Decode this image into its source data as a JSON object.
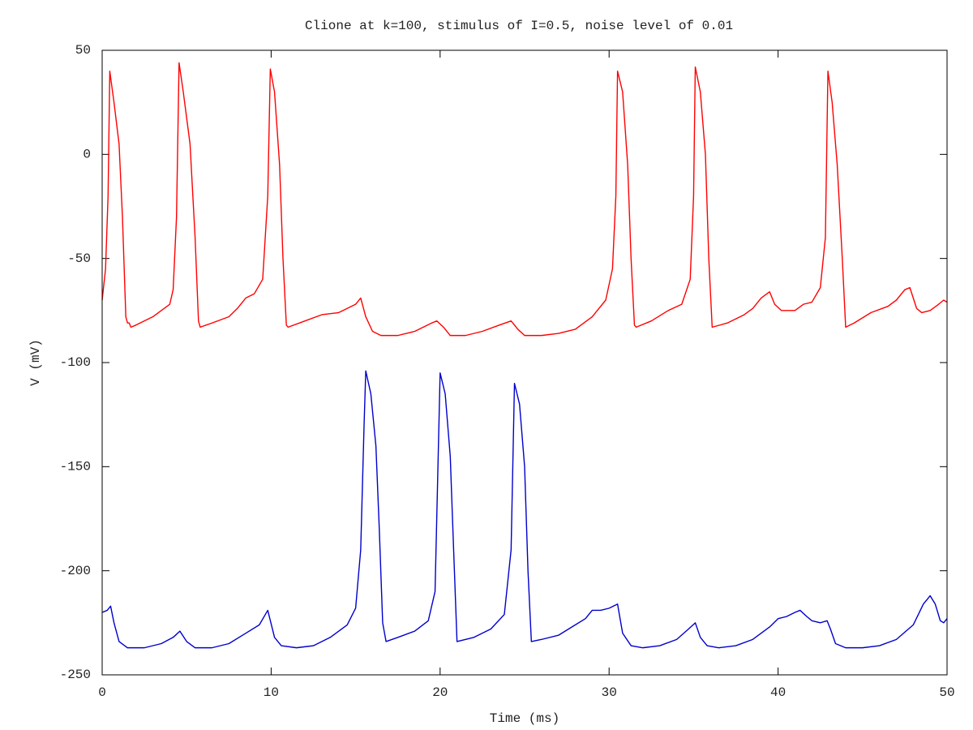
{
  "chart_data": {
    "type": "line",
    "title": "Clione at k=100, stimulus of I=0.5, noise level of 0.01",
    "x_label": "Time (ms)",
    "y_label": "V (mV)",
    "xlim": [
      0,
      50
    ],
    "ylim": [
      -250,
      50
    ],
    "xticks": [
      0,
      10,
      20,
      30,
      40,
      50
    ],
    "yticks": [
      -250,
      -200,
      -150,
      -100,
      -50,
      0,
      50
    ],
    "grid": false,
    "series": [
      {
        "color": "#ff0000",
        "x": [
          0,
          0.2,
          0.35,
          0.45,
          0.7,
          1.0,
          1.2,
          1.4,
          1.5,
          1.6,
          1.7,
          2,
          3,
          4,
          4.2,
          4.4,
          4.55,
          4.8,
          5.2,
          5.5,
          5.7,
          5.8,
          6.5,
          7.5,
          8,
          8.5,
          9,
          9.5,
          9.8,
          9.95,
          10.2,
          10.5,
          10.7,
          10.9,
          11,
          12,
          13,
          14,
          14.5,
          15,
          15.3,
          15.6,
          16,
          16.5,
          17.5,
          18.5,
          19.5,
          19.8,
          20.2,
          20.6,
          21.5,
          22.5,
          23.5,
          24.2,
          24.6,
          25,
          26,
          27,
          28,
          29,
          29.8,
          30.2,
          30.4,
          30.5,
          30.8,
          31.1,
          31.3,
          31.5,
          31.6,
          32.5,
          33.5,
          34.3,
          34.8,
          35.0,
          35.1,
          35.4,
          35.7,
          35.9,
          36.1,
          37,
          38,
          38.5,
          39,
          39.5,
          39.8,
          40.2,
          41,
          41.5,
          42,
          42.5,
          42.8,
          42.95,
          43.2,
          43.5,
          43.8,
          44,
          44.5,
          45.5,
          46.5,
          47,
          47.5,
          47.8,
          48.2,
          48.5,
          49,
          49.5,
          49.8,
          50
        ],
        "values": [
          -70,
          -55,
          -20,
          40,
          25,
          5,
          -30,
          -78,
          -81,
          -81,
          -83,
          -82,
          -78,
          -72,
          -65,
          -30,
          44,
          30,
          5,
          -40,
          -80,
          -83,
          -81,
          -78,
          -74,
          -69,
          -67,
          -60,
          -20,
          41,
          30,
          -5,
          -50,
          -82,
          -83,
          -80,
          -77,
          -76,
          -74,
          -72,
          -69,
          -78,
          -85,
          -87,
          -87,
          -85,
          -81,
          -80,
          -83,
          -87,
          -87,
          -85,
          -82,
          -80,
          -84,
          -87,
          -87,
          -86,
          -84,
          -78,
          -70,
          -55,
          -20,
          40,
          30,
          -5,
          -50,
          -82,
          -83,
          -80,
          -75,
          -72,
          -60,
          -20,
          42,
          30,
          0,
          -50,
          -83,
          -81,
          -77,
          -74,
          -69,
          -66,
          -72,
          -75,
          -75,
          -72,
          -71,
          -64,
          -40,
          40,
          25,
          -5,
          -50,
          -83,
          -81,
          -76,
          -73,
          -70,
          -65,
          -64,
          -74,
          -76,
          -75,
          -72,
          -70,
          -71
        ]
      },
      {
        "color": "#0000cc",
        "x": [
          0,
          0.3,
          0.5,
          0.7,
          1,
          1.5,
          2.5,
          3.5,
          4.2,
          4.6,
          5,
          5.5,
          6.5,
          7.5,
          8.5,
          9.3,
          9.8,
          10.2,
          10.6,
          11.5,
          12.5,
          13.5,
          14.5,
          15,
          15.3,
          15.5,
          15.6,
          15.9,
          16.2,
          16.4,
          16.6,
          16.8,
          17.5,
          18.5,
          19.3,
          19.7,
          19.9,
          20.0,
          20.3,
          20.6,
          20.8,
          21,
          22,
          23,
          23.8,
          24.2,
          24.4,
          24.7,
          25,
          25.2,
          25.4,
          26,
          27,
          28,
          28.6,
          29,
          29.5,
          30,
          30.5,
          30.8,
          31.3,
          32,
          33,
          34,
          34.7,
          35.1,
          35.4,
          35.8,
          36.5,
          37.5,
          38.5,
          39.5,
          40,
          40.5,
          41,
          41.3,
          41.7,
          42,
          42.5,
          42.9,
          43.1,
          43.4,
          44,
          45,
          46,
          47,
          48,
          48.6,
          49,
          49.3,
          49.6,
          49.8,
          50
        ],
        "values": [
          -220,
          -219,
          -217,
          -225,
          -234,
          -237,
          -237,
          -235,
          -232,
          -229,
          -234,
          -237,
          -237,
          -235,
          -230,
          -226,
          -219,
          -232,
          -236,
          -237,
          -236,
          -232,
          -226,
          -218,
          -190,
          -130,
          -104,
          -115,
          -140,
          -180,
          -225,
          -234,
          -232,
          -229,
          -224,
          -210,
          -140,
          -105,
          -115,
          -145,
          -190,
          -234,
          -232,
          -228,
          -221,
          -190,
          -110,
          -120,
          -150,
          -200,
          -234,
          -233,
          -231,
          -226,
          -223,
          -219,
          -219,
          -218,
          -216,
          -230,
          -236,
          -237,
          -236,
          -233,
          -228,
          -225,
          -232,
          -236,
          -237,
          -236,
          -233,
          -227,
          -223,
          -222,
          -220,
          -219,
          -222,
          -224,
          -225,
          -224,
          -228,
          -235,
          -237,
          -237,
          -236,
          -233,
          -226,
          -216,
          -212,
          -216,
          -224,
          -225,
          -223
        ]
      }
    ]
  }
}
